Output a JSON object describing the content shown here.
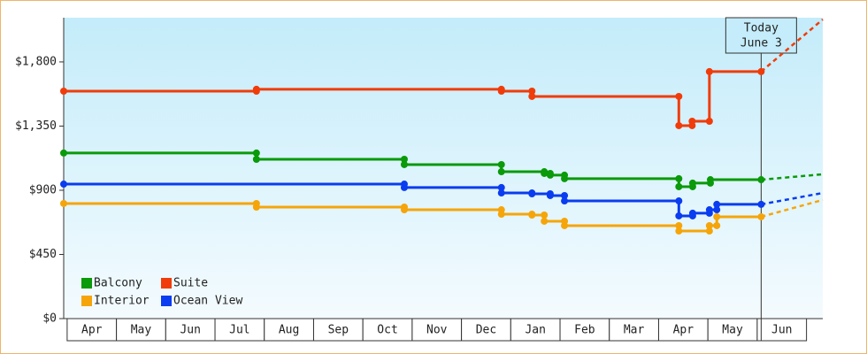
{
  "chart_data": {
    "type": "step-line",
    "categories": [
      "Apr",
      "May",
      "Jun",
      "Jul",
      "Aug",
      "Sep",
      "Oct",
      "Nov",
      "Dec",
      "Jan",
      "Feb",
      "Mar",
      "Apr",
      "May",
      "Jun"
    ],
    "xlim": [
      -0.07,
      15.33
    ],
    "ylim": [
      0,
      2110
    ],
    "yticks": [
      {
        "value": 0,
        "label": "$0"
      },
      {
        "value": 450,
        "label": "$450"
      },
      {
        "value": 900,
        "label": "$900"
      },
      {
        "value": 1350,
        "label": "$1,350"
      },
      {
        "value": 1800,
        "label": "$1,800"
      }
    ],
    "today": {
      "x": 14.08,
      "label_1": "Today",
      "label_2": "June 3"
    },
    "series": [
      {
        "name": "Balcony",
        "color": "#0a9a0a",
        "x": [
          -0.07,
          3.84,
          6.84,
          8.81,
          9.68,
          9.8,
          10.09,
          12.41,
          12.69,
          13.05,
          14.08,
          15.33
        ],
        "values": [
          1161,
          1117,
          1080,
          1030,
          1018,
          1006,
          981,
          925,
          950,
          974,
          974,
          1012
        ]
      },
      {
        "name": "Suite",
        "color": "#f03c0a",
        "x": [
          -0.07,
          3.84,
          8.81,
          9.43,
          12.41,
          12.68,
          13.03,
          14.08,
          15.33
        ],
        "values": [
          1595,
          1608,
          1595,
          1558,
          1353,
          1384,
          1732,
          1732,
          2098
        ]
      },
      {
        "name": "Interior",
        "color": "#f5a50a",
        "x": [
          -0.07,
          3.84,
          6.84,
          8.81,
          9.43,
          9.68,
          10.09,
          12.41,
          13.03,
          13.18,
          14.08,
          15.33
        ],
        "values": [
          807,
          782,
          763,
          732,
          726,
          683,
          652,
          614,
          652,
          714,
          714,
          832
        ]
      },
      {
        "name": "Ocean View",
        "color": "#0a3cf0",
        "x": [
          -0.07,
          6.84,
          8.81,
          9.43,
          9.8,
          10.09,
          12.41,
          12.69,
          13.03,
          13.18,
          14.08,
          15.33
        ],
        "values": [
          943,
          919,
          881,
          875,
          863,
          825,
          720,
          739,
          763,
          801,
          801,
          881
        ]
      }
    ]
  }
}
